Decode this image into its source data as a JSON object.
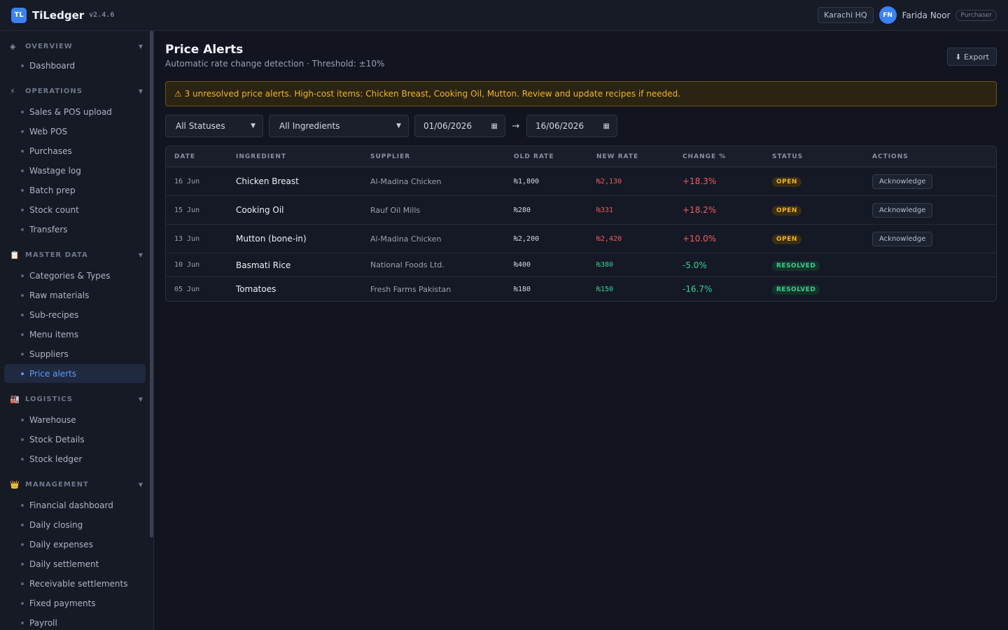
{
  "app": {
    "logo": "TL",
    "name": "TiLedger",
    "version": "v2.4.6"
  },
  "topbar": {
    "branch": "Karachi HQ",
    "avatar": "FN",
    "user": "Farida Noor",
    "role": "Purchaser"
  },
  "sidebar": {
    "sections": [
      {
        "icon": "◈",
        "label": "OVERVIEW",
        "items": [
          "Dashboard"
        ]
      },
      {
        "icon": "⚡",
        "label": "OPERATIONS",
        "items": [
          "Sales & POS upload",
          "Web POS",
          "Purchases",
          "Wastage log",
          "Batch prep",
          "Stock count",
          "Transfers"
        ]
      },
      {
        "icon": "📋",
        "label": "MASTER DATA",
        "items": [
          "Categories & Types",
          "Raw materials",
          "Sub-recipes",
          "Menu items",
          "Suppliers",
          "Price alerts"
        ]
      },
      {
        "icon": "🏭",
        "label": "LOGISTICS",
        "items": [
          "Warehouse",
          "Stock Details",
          "Stock ledger"
        ]
      },
      {
        "icon": "👑",
        "label": "MANAGEMENT",
        "items": [
          "Financial dashboard",
          "Daily closing",
          "Daily expenses",
          "Daily settlement",
          "Receivable settlements",
          "Fixed payments",
          "Payroll"
        ]
      }
    ],
    "active_item": "Price alerts"
  },
  "page": {
    "title": "Price Alerts",
    "subtitle": "Automatic rate change detection · Threshold: ±10%",
    "export_label": "⬇ Export",
    "alert": "⚠ 3 unresolved price alerts. High-cost items: Chicken Breast, Cooking Oil, Mutton. Review and update recipes if needed."
  },
  "filters": {
    "status": "All Statuses",
    "ingredient": "All Ingredients",
    "date_from": "01/06/2026",
    "arrow": "→",
    "date_to": "16/06/2026"
  },
  "table": {
    "headers": [
      "DATE",
      "INGREDIENT",
      "SUPPLIER",
      "OLD RATE",
      "NEW RATE",
      "CHANGE %",
      "STATUS",
      "ACTIONS"
    ],
    "rows": [
      {
        "date": "16 Jun",
        "ingredient": "Chicken Breast",
        "supplier": "Al-Madina Chicken",
        "old_rate": "₨1,800",
        "new_rate": "₨2,130",
        "change": "+18.3%",
        "direction": "up",
        "status": "OPEN",
        "action": "Acknowledge"
      },
      {
        "date": "15 Jun",
        "ingredient": "Cooking Oil",
        "supplier": "Rauf Oil Mills",
        "old_rate": "₨280",
        "new_rate": "₨331",
        "change": "+18.2%",
        "direction": "up",
        "status": "OPEN",
        "action": "Acknowledge"
      },
      {
        "date": "13 Jun",
        "ingredient": "Mutton (bone-in)",
        "supplier": "Al-Madina Chicken",
        "old_rate": "₨2,200",
        "new_rate": "₨2,420",
        "change": "+10.0%",
        "direction": "up",
        "status": "OPEN",
        "action": "Acknowledge"
      },
      {
        "date": "10 Jun",
        "ingredient": "Basmati Rice",
        "supplier": "National Foods Ltd.",
        "old_rate": "₨400",
        "new_rate": "₨380",
        "change": "-5.0%",
        "direction": "down",
        "status": "RESOLVED",
        "action": ""
      },
      {
        "date": "05 Jun",
        "ingredient": "Tomatoes",
        "supplier": "Fresh Farms Pakistan",
        "old_rate": "₨180",
        "new_rate": "₨150",
        "change": "-16.7%",
        "direction": "down",
        "status": "RESOLVED",
        "action": ""
      }
    ]
  },
  "colors": {
    "accent": "#3b82f6",
    "warning": "#f0b429",
    "increase": "#f05d5e",
    "decrease": "#34d399"
  }
}
